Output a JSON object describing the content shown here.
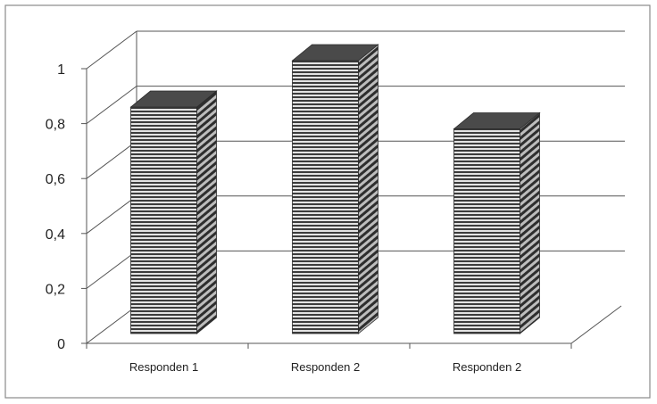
{
  "chart_data": {
    "type": "bar",
    "categories": [
      "Responden 1",
      "Responden 2",
      "Responden 2"
    ],
    "values": [
      0.83,
      1.0,
      0.75
    ],
    "ylim": [
      0,
      1
    ],
    "yticks": [
      "0",
      "0,2",
      "0,4",
      "0,6",
      "0,8",
      "1"
    ],
    "grid": true,
    "legend": "none",
    "style": "3d-column"
  },
  "colors": {
    "frame": "#8a8a8a",
    "gridline": "#555555",
    "bar_stripe_dark": "#3a3a3a",
    "bar_stripe_light": "#d8d8d8",
    "bar_top": "#4a4a4a"
  }
}
